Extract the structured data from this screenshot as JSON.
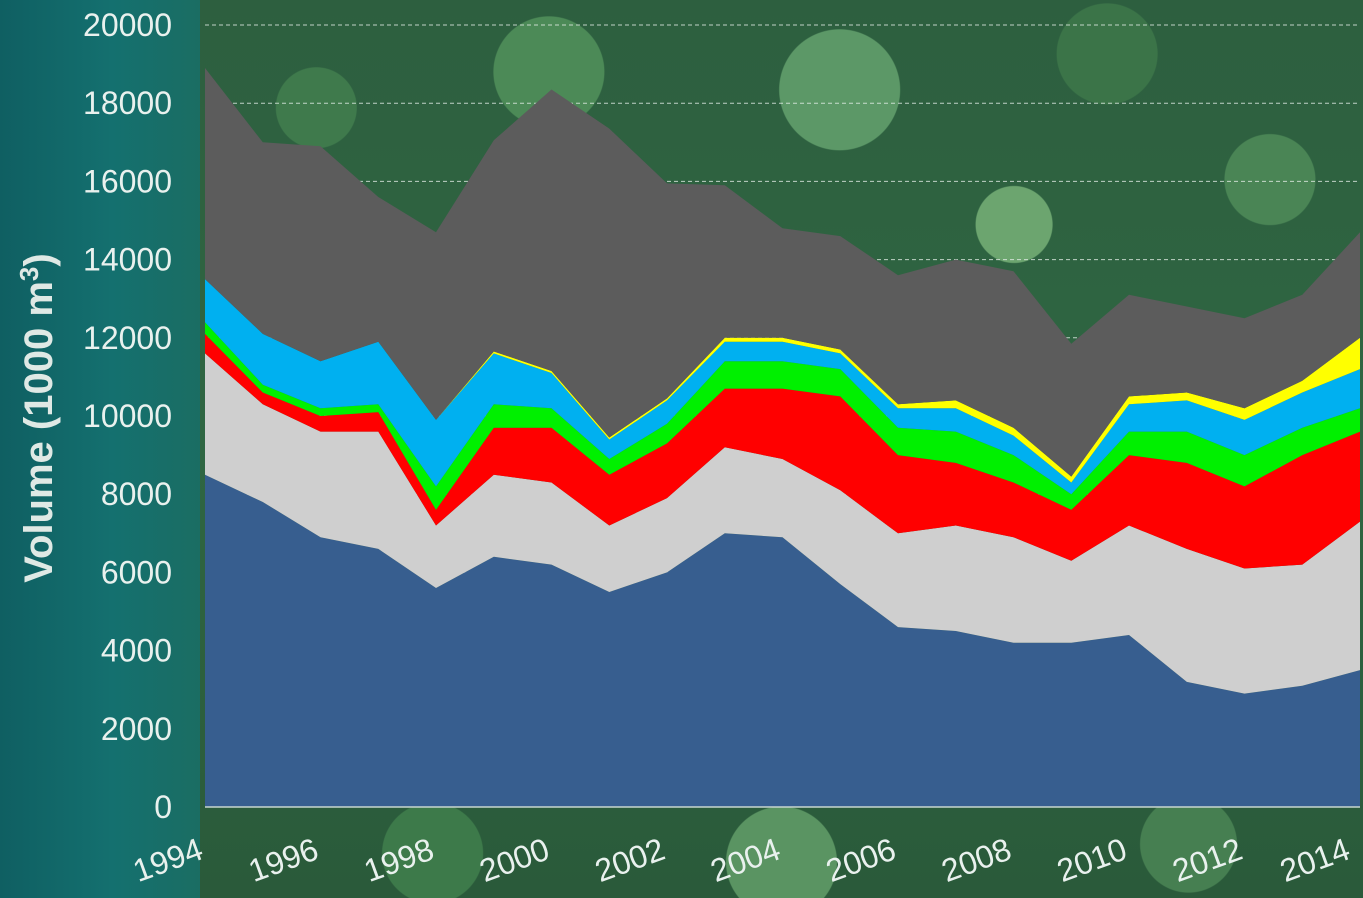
{
  "chart_data": {
    "type": "area",
    "stacked": true,
    "x": [
      1994,
      1995,
      1996,
      1997,
      1998,
      1999,
      2000,
      2001,
      2002,
      2003,
      2004,
      2005,
      2006,
      2007,
      2008,
      2009,
      2010,
      2011,
      2012,
      2013,
      2014
    ],
    "x_tick_labels": [
      "1994",
      "1996",
      "1998",
      "2000",
      "2002",
      "2004",
      "2006",
      "2008",
      "2010",
      "2012",
      "2014"
    ],
    "ylim": [
      0,
      20000
    ],
    "y_ticks": [
      0,
      2000,
      4000,
      6000,
      8000,
      10000,
      12000,
      14000,
      16000,
      18000,
      20000
    ],
    "y_tick_labels": [
      "0",
      "2000",
      "4000",
      "6000",
      "8000",
      "10000",
      "12000",
      "14000",
      "16000",
      "18000",
      "20000"
    ],
    "ylabel": "Volume (1000 m",
    "ylabel_superscript": "3",
    "ylabel_close": ")",
    "grid": "horizontal dashed",
    "series": [
      {
        "color": "#375e8f",
        "values": [
          8500,
          7800,
          6900,
          6600,
          5600,
          6400,
          6200,
          5500,
          6000,
          7000,
          6900,
          5700,
          4600,
          4500,
          4200,
          4200,
          4400,
          3200,
          2900,
          3100,
          3500
        ]
      },
      {
        "color": "#cfcfcf",
        "values": [
          3100,
          2500,
          2700,
          3000,
          1600,
          2100,
          2100,
          1700,
          1900,
          2200,
          2000,
          2400,
          2400,
          2700,
          2700,
          2100,
          2800,
          3400,
          3200,
          3100,
          3800
        ]
      },
      {
        "color": "#ff0000",
        "values": [
          500,
          300,
          400,
          500,
          400,
          1200,
          1400,
          1300,
          1400,
          1500,
          1800,
          2400,
          2000,
          1600,
          1400,
          1300,
          1800,
          2200,
          2100,
          2800,
          2300
        ]
      },
      {
        "color": "#00f000",
        "values": [
          300,
          200,
          200,
          200,
          600,
          600,
          500,
          400,
          500,
          700,
          700,
          700,
          700,
          800,
          700,
          400,
          600,
          800,
          800,
          700,
          600
        ]
      },
      {
        "color": "#00b0f0",
        "values": [
          1100,
          1300,
          1200,
          1600,
          1700,
          1300,
          900,
          500,
          600,
          500,
          500,
          400,
          500,
          600,
          500,
          300,
          700,
          800,
          900,
          900,
          1000
        ]
      },
      {
        "color": "#ffff00",
        "values": [
          0,
          0,
          0,
          0,
          0,
          50,
          50,
          50,
          50,
          100,
          100,
          100,
          100,
          200,
          200,
          150,
          200,
          200,
          300,
          300,
          800
        ]
      },
      {
        "color": "#5c5c5c",
        "values": [
          5400,
          4900,
          5500,
          3700,
          4800,
          5400,
          7200,
          7900,
          5500,
          3900,
          2800,
          2900,
          3300,
          3600,
          4000,
          3400,
          2600,
          2200,
          2300,
          2200,
          2700
        ]
      }
    ]
  }
}
